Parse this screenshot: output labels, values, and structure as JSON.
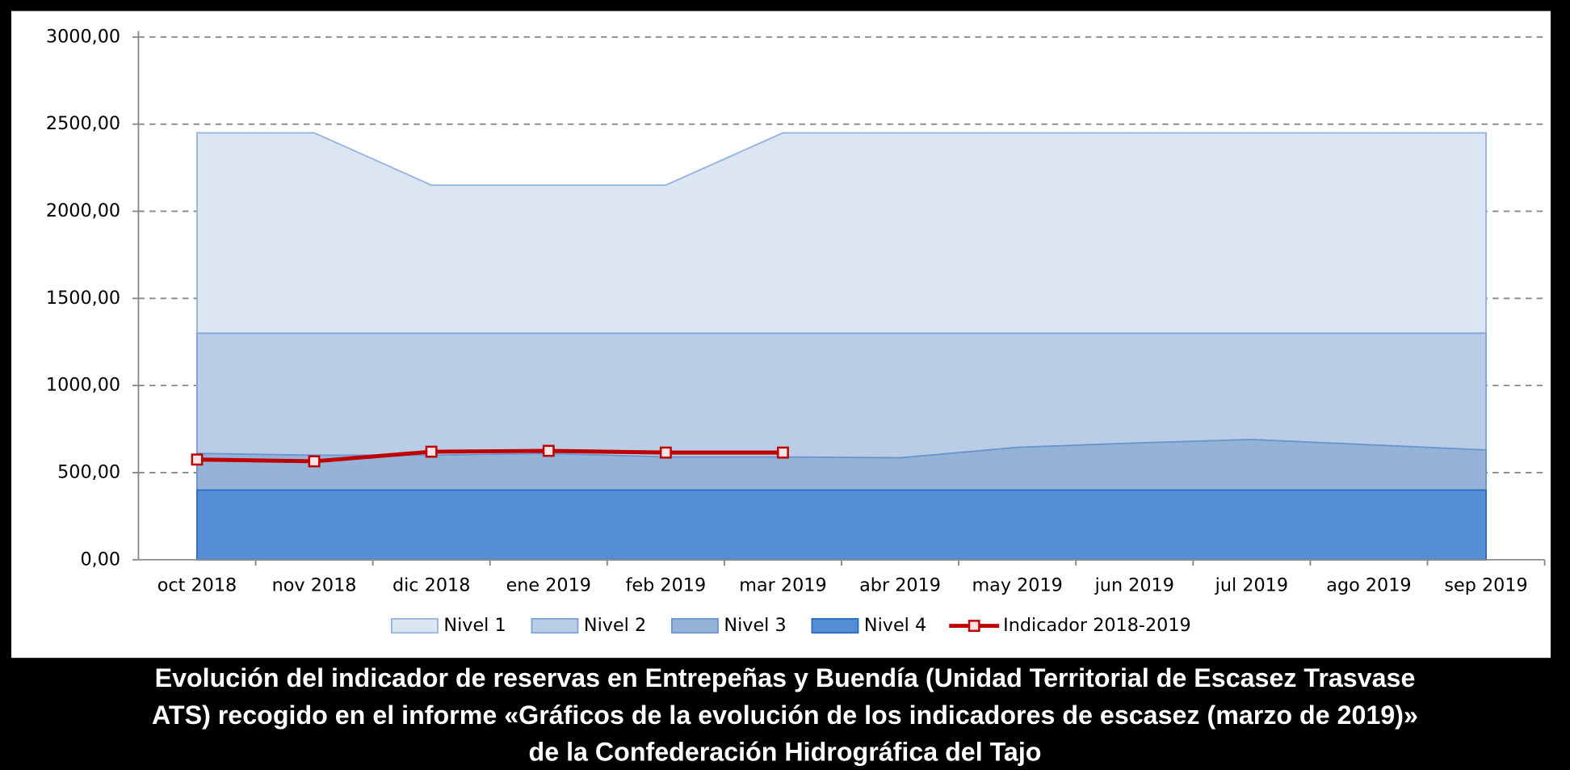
{
  "chart_data": {
    "type": "area",
    "categories": [
      "oct 2018",
      "nov 2018",
      "dic 2018",
      "ene 2019",
      "feb 2019",
      "mar 2019",
      "abr 2019",
      "may 2019",
      "jun 2019",
      "jul 2019",
      "ago 2019",
      "sep 2019"
    ],
    "series": [
      {
        "name": "Nivel 1",
        "kind": "area",
        "color": "#dce6f2",
        "stroke": "#95b4dd",
        "values": [
          2450,
          2450,
          2150,
          2150,
          2150,
          2450,
          2450,
          2450,
          2450,
          2450,
          2450,
          2450
        ]
      },
      {
        "name": "Nivel 2",
        "kind": "area",
        "color": "#b9cde6",
        "stroke": "#7ea4d6",
        "values": [
          1300,
          1300,
          1300,
          1300,
          1300,
          1300,
          1300,
          1300,
          1300,
          1300,
          1300,
          1300
        ]
      },
      {
        "name": "Nivel 3",
        "kind": "area",
        "color": "#95b3d7",
        "stroke": "#6a95cd",
        "values": [
          610,
          600,
          600,
          610,
          590,
          590,
          585,
          645,
          670,
          690,
          660,
          630
        ]
      },
      {
        "name": "Nivel 4",
        "kind": "area",
        "color": "#558ed5",
        "stroke": "#2a6cc0",
        "values": [
          400,
          400,
          400,
          400,
          400,
          400,
          400,
          400,
          400,
          400,
          400,
          400
        ]
      },
      {
        "name": "Indicador 2018-2019",
        "kind": "line",
        "color": "#c00000",
        "marker_fill": "#fde4e4",
        "values": [
          575,
          565,
          620,
          625,
          615,
          615,
          null,
          null,
          null,
          null,
          null,
          null
        ]
      }
    ],
    "ylim": [
      0,
      3000
    ],
    "yticks": [
      {
        "value": 0,
        "label": "0,00"
      },
      {
        "value": 500,
        "label": "500,00"
      },
      {
        "value": 1000,
        "label": "1000,00"
      },
      {
        "value": 1500,
        "label": "1500,00"
      },
      {
        "value": 2000,
        "label": "2000,00"
      },
      {
        "value": 2500,
        "label": "2500,00"
      },
      {
        "value": 3000,
        "label": "3000,00"
      }
    ],
    "grid": true,
    "legend": "bottom",
    "caption": [
      "Evolución del indicador de reservas en Entrepeñas y Buendía (Unidad Territorial de Escasez Trasvase",
      "ATS) recogido en el informe «Gráficos de la evolución de los indicadores de escasez (marzo de 2019)»",
      "de la Confederación Hidrográfica del Tajo"
    ]
  }
}
